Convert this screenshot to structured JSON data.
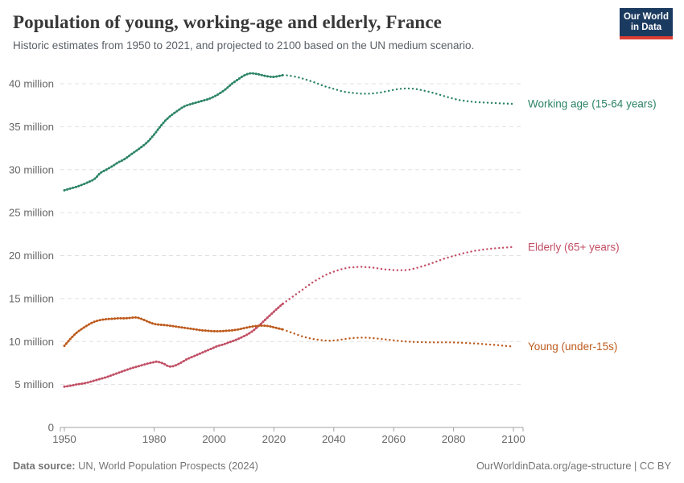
{
  "header": {
    "title": "Population of young, working-age and elderly, France",
    "subtitle": "Historic estimates from 1950 to 2021, and projected to 2100 based on the UN medium scenario.",
    "logo": {
      "line1": "Our World",
      "line2": "in Data",
      "bg_color": "#1b3a5f",
      "accent_color": "#dc3e34"
    }
  },
  "footer": {
    "source_label": "Data source:",
    "source_text": "UN, World Population Prospects (2024)",
    "right_text": "OurWorldinData.org/age-structure | CC BY"
  },
  "chart_data": {
    "type": "line",
    "title": "Population of young, working-age and elderly, France",
    "subtitle": "Historic estimates from 1950 to 2021, and projected to 2100 based on the UN medium scenario.",
    "unit": "people (millions)",
    "grid": "dashed-horizontal",
    "legend_position": "right-end-labels",
    "projection_start_year": 2023,
    "x_axis": {
      "range": [
        1950,
        2100
      ],
      "ticks": [
        1950,
        1980,
        2000,
        2020,
        2040,
        2060,
        2080,
        2100
      ]
    },
    "y_axis": {
      "range": [
        0,
        41.5
      ],
      "ticks": [
        {
          "value": 0,
          "label": "0"
        },
        {
          "value": 5,
          "label": "5 million"
        },
        {
          "value": 10,
          "label": "10 million"
        },
        {
          "value": 15,
          "label": "15 million"
        },
        {
          "value": 20,
          "label": "20 million"
        },
        {
          "value": 25,
          "label": "25 million"
        },
        {
          "value": 30,
          "label": "30 million"
        },
        {
          "value": 35,
          "label": "35 million"
        },
        {
          "value": 40,
          "label": "40 million"
        }
      ]
    },
    "series": [
      {
        "name": "Working age (15-64 years)",
        "slug": "working-age",
        "color": "#2C8465",
        "historic": [
          [
            1950,
            27.6
          ],
          [
            1952,
            27.8
          ],
          [
            1954,
            28.0
          ],
          [
            1956,
            28.25
          ],
          [
            1958,
            28.55
          ],
          [
            1960,
            28.9
          ],
          [
            1962,
            29.6
          ],
          [
            1964,
            30.0
          ],
          [
            1966,
            30.4
          ],
          [
            1968,
            30.85
          ],
          [
            1970,
            31.2
          ],
          [
            1972,
            31.7
          ],
          [
            1974,
            32.2
          ],
          [
            1976,
            32.7
          ],
          [
            1978,
            33.3
          ],
          [
            1980,
            34.1
          ],
          [
            1982,
            35.0
          ],
          [
            1984,
            35.8
          ],
          [
            1986,
            36.4
          ],
          [
            1988,
            36.9
          ],
          [
            1990,
            37.35
          ],
          [
            1992,
            37.6
          ],
          [
            1994,
            37.8
          ],
          [
            1996,
            38.0
          ],
          [
            1998,
            38.2
          ],
          [
            2000,
            38.5
          ],
          [
            2002,
            38.9
          ],
          [
            2004,
            39.4
          ],
          [
            2006,
            40.0
          ],
          [
            2008,
            40.5
          ],
          [
            2010,
            40.95
          ],
          [
            2012,
            41.2
          ],
          [
            2014,
            41.15
          ],
          [
            2016,
            41.0
          ],
          [
            2018,
            40.85
          ],
          [
            2020,
            40.8
          ],
          [
            2023,
            41.0
          ]
        ],
        "projected": [
          [
            2023,
            41.0
          ],
          [
            2025,
            40.95
          ],
          [
            2028,
            40.75
          ],
          [
            2031,
            40.45
          ],
          [
            2034,
            40.1
          ],
          [
            2037,
            39.7
          ],
          [
            2040,
            39.4
          ],
          [
            2043,
            39.1
          ],
          [
            2046,
            38.95
          ],
          [
            2049,
            38.85
          ],
          [
            2052,
            38.85
          ],
          [
            2055,
            38.95
          ],
          [
            2058,
            39.15
          ],
          [
            2061,
            39.35
          ],
          [
            2064,
            39.45
          ],
          [
            2067,
            39.4
          ],
          [
            2070,
            39.2
          ],
          [
            2073,
            38.95
          ],
          [
            2076,
            38.65
          ],
          [
            2079,
            38.35
          ],
          [
            2082,
            38.1
          ],
          [
            2085,
            37.95
          ],
          [
            2088,
            37.85
          ],
          [
            2091,
            37.8
          ],
          [
            2094,
            37.75
          ],
          [
            2097,
            37.7
          ],
          [
            2100,
            37.65
          ]
        ]
      },
      {
        "name": "Elderly (65+ years)",
        "slug": "elderly",
        "color": "#C14F65",
        "historic": [
          [
            1950,
            4.75
          ],
          [
            1952,
            4.85
          ],
          [
            1954,
            5.0
          ],
          [
            1956,
            5.1
          ],
          [
            1958,
            5.25
          ],
          [
            1960,
            5.45
          ],
          [
            1962,
            5.65
          ],
          [
            1964,
            5.85
          ],
          [
            1966,
            6.1
          ],
          [
            1968,
            6.35
          ],
          [
            1970,
            6.6
          ],
          [
            1972,
            6.85
          ],
          [
            1974,
            7.05
          ],
          [
            1976,
            7.25
          ],
          [
            1978,
            7.45
          ],
          [
            1980,
            7.6
          ],
          [
            1981,
            7.65
          ],
          [
            1983,
            7.45
          ],
          [
            1985,
            7.1
          ],
          [
            1987,
            7.2
          ],
          [
            1989,
            7.55
          ],
          [
            1991,
            7.95
          ],
          [
            1993,
            8.25
          ],
          [
            1995,
            8.55
          ],
          [
            1997,
            8.85
          ],
          [
            1999,
            9.15
          ],
          [
            2001,
            9.45
          ],
          [
            2003,
            9.65
          ],
          [
            2005,
            9.9
          ],
          [
            2007,
            10.15
          ],
          [
            2009,
            10.45
          ],
          [
            2011,
            10.8
          ],
          [
            2013,
            11.25
          ],
          [
            2015,
            11.85
          ],
          [
            2017,
            12.5
          ],
          [
            2019,
            13.15
          ],
          [
            2021,
            13.8
          ],
          [
            2023,
            14.4
          ]
        ],
        "projected": [
          [
            2023,
            14.4
          ],
          [
            2025,
            14.9
          ],
          [
            2027,
            15.4
          ],
          [
            2029,
            15.9
          ],
          [
            2031,
            16.4
          ],
          [
            2033,
            16.9
          ],
          [
            2035,
            17.3
          ],
          [
            2037,
            17.7
          ],
          [
            2039,
            18.0
          ],
          [
            2041,
            18.25
          ],
          [
            2043,
            18.45
          ],
          [
            2045,
            18.6
          ],
          [
            2047,
            18.65
          ],
          [
            2049,
            18.7
          ],
          [
            2051,
            18.65
          ],
          [
            2053,
            18.6
          ],
          [
            2055,
            18.5
          ],
          [
            2057,
            18.4
          ],
          [
            2059,
            18.35
          ],
          [
            2061,
            18.3
          ],
          [
            2063,
            18.3
          ],
          [
            2065,
            18.35
          ],
          [
            2067,
            18.5
          ],
          [
            2069,
            18.7
          ],
          [
            2071,
            18.9
          ],
          [
            2073,
            19.15
          ],
          [
            2075,
            19.4
          ],
          [
            2077,
            19.65
          ],
          [
            2079,
            19.85
          ],
          [
            2081,
            20.05
          ],
          [
            2083,
            20.25
          ],
          [
            2085,
            20.4
          ],
          [
            2087,
            20.55
          ],
          [
            2089,
            20.65
          ],
          [
            2091,
            20.75
          ],
          [
            2093,
            20.82
          ],
          [
            2095,
            20.88
          ],
          [
            2097,
            20.93
          ],
          [
            2100,
            21.0
          ]
        ]
      },
      {
        "name": "Young (under-15s)",
        "slug": "young",
        "color": "#BD5A1C",
        "historic": [
          [
            1950,
            9.5
          ],
          [
            1952,
            10.3
          ],
          [
            1954,
            11.0
          ],
          [
            1956,
            11.5
          ],
          [
            1958,
            11.95
          ],
          [
            1960,
            12.3
          ],
          [
            1962,
            12.5
          ],
          [
            1964,
            12.6
          ],
          [
            1966,
            12.65
          ],
          [
            1968,
            12.7
          ],
          [
            1970,
            12.7
          ],
          [
            1972,
            12.75
          ],
          [
            1974,
            12.8
          ],
          [
            1976,
            12.6
          ],
          [
            1978,
            12.3
          ],
          [
            1980,
            12.05
          ],
          [
            1982,
            11.95
          ],
          [
            1984,
            11.9
          ],
          [
            1986,
            11.8
          ],
          [
            1988,
            11.7
          ],
          [
            1990,
            11.6
          ],
          [
            1992,
            11.5
          ],
          [
            1994,
            11.4
          ],
          [
            1996,
            11.3
          ],
          [
            1998,
            11.25
          ],
          [
            2000,
            11.2
          ],
          [
            2002,
            11.2
          ],
          [
            2004,
            11.25
          ],
          [
            2006,
            11.3
          ],
          [
            2008,
            11.4
          ],
          [
            2010,
            11.55
          ],
          [
            2012,
            11.7
          ],
          [
            2014,
            11.8
          ],
          [
            2016,
            11.85
          ],
          [
            2018,
            11.8
          ],
          [
            2020,
            11.65
          ],
          [
            2023,
            11.4
          ]
        ],
        "projected": [
          [
            2023,
            11.4
          ],
          [
            2025,
            11.15
          ],
          [
            2027,
            10.9
          ],
          [
            2029,
            10.65
          ],
          [
            2031,
            10.45
          ],
          [
            2033,
            10.3
          ],
          [
            2035,
            10.2
          ],
          [
            2037,
            10.12
          ],
          [
            2039,
            10.1
          ],
          [
            2041,
            10.15
          ],
          [
            2043,
            10.25
          ],
          [
            2045,
            10.35
          ],
          [
            2047,
            10.42
          ],
          [
            2049,
            10.45
          ],
          [
            2051,
            10.45
          ],
          [
            2053,
            10.4
          ],
          [
            2055,
            10.33
          ],
          [
            2057,
            10.25
          ],
          [
            2059,
            10.18
          ],
          [
            2061,
            10.1
          ],
          [
            2063,
            10.03
          ],
          [
            2065,
            9.98
          ],
          [
            2067,
            9.95
          ],
          [
            2070,
            9.92
          ],
          [
            2073,
            9.9
          ],
          [
            2076,
            9.9
          ],
          [
            2079,
            9.9
          ],
          [
            2082,
            9.87
          ],
          [
            2085,
            9.82
          ],
          [
            2088,
            9.76
          ],
          [
            2091,
            9.68
          ],
          [
            2094,
            9.6
          ],
          [
            2097,
            9.5
          ],
          [
            2100,
            9.42
          ]
        ]
      }
    ],
    "style": {
      "grid_color": "#E0E0E0",
      "axis_color": "#A3A3A3",
      "tick_label_color": "#666666"
    }
  }
}
